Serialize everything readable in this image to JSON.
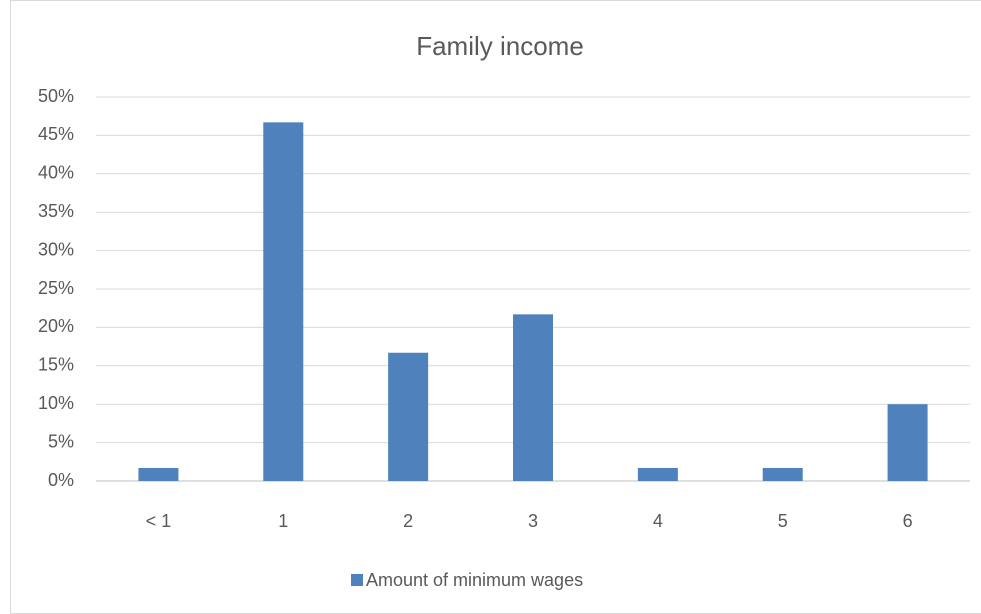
{
  "chart_data": {
    "type": "bar",
    "title": "Family income",
    "categories": [
      "< 1",
      "1",
      "2",
      "3",
      "4",
      "5",
      "6"
    ],
    "series": [
      {
        "name": "Amount of minimum wages",
        "color": "#4f81bd",
        "values": [
          1.7,
          46.7,
          16.7,
          21.7,
          1.7,
          1.7,
          10.0
        ]
      }
    ],
    "ylim": [
      0,
      50
    ],
    "yticks": [
      {
        "value": 0,
        "label": "0%"
      },
      {
        "value": 5,
        "label": "5%"
      },
      {
        "value": 10,
        "label": "10%"
      },
      {
        "value": 15,
        "label": "15%"
      },
      {
        "value": 20,
        "label": "20%"
      },
      {
        "value": 25,
        "label": "25%"
      },
      {
        "value": 30,
        "label": "30%"
      },
      {
        "value": 35,
        "label": "35%"
      },
      {
        "value": 40,
        "label": "40%"
      },
      {
        "value": 45,
        "label": "45%"
      },
      {
        "value": 50,
        "label": "50%"
      }
    ],
    "grid": true,
    "legend": "bottom"
  }
}
